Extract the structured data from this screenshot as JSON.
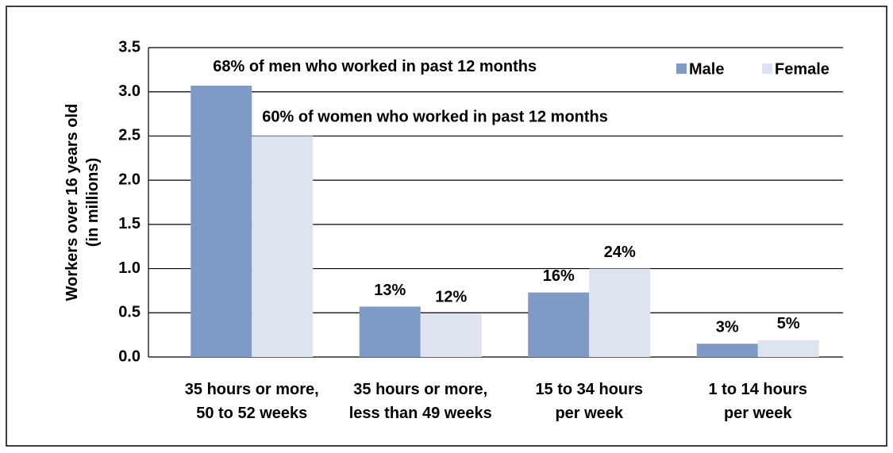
{
  "chart_data": {
    "type": "bar",
    "ylabel": [
      "Workers over 16 years old",
      "(in millions)"
    ],
    "categories": [
      [
        "35 hours or more,",
        "50 to 52 weeks"
      ],
      [
        "35 hours or more,",
        "less than 49 weeks"
      ],
      [
        "15 to 34 hours",
        "per week"
      ],
      [
        "1 to 14 hours",
        "per week"
      ]
    ],
    "series": [
      {
        "name": "Male",
        "color": "#7f9ac4",
        "values": [
          3.07,
          0.57,
          0.73,
          0.15
        ],
        "annotations": [
          "68% of men who worked in past 12 months",
          "13%",
          "16%",
          "3%"
        ]
      },
      {
        "name": "Female",
        "color": "#dde3ef",
        "values": [
          2.5,
          0.49,
          1.0,
          0.19
        ],
        "annotations": [
          "60% of women who worked in past 12 months",
          "12%",
          "24%",
          "5%"
        ]
      }
    ],
    "ylim": [
      0,
      3.5
    ],
    "yticks": [
      {
        "value": 0,
        "label": "0.0"
      },
      {
        "value": 0.5,
        "label": "0.5"
      },
      {
        "value": 1,
        "label": "1.0"
      },
      {
        "value": 1.5,
        "label": "1.5"
      },
      {
        "value": 2,
        "label": "2.0"
      },
      {
        "value": 2.5,
        "label": "2.5"
      },
      {
        "value": 3,
        "label": "3.0"
      },
      {
        "value": 3.5,
        "label": "3.5"
      }
    ],
    "grid": true,
    "legend": "top-right"
  }
}
